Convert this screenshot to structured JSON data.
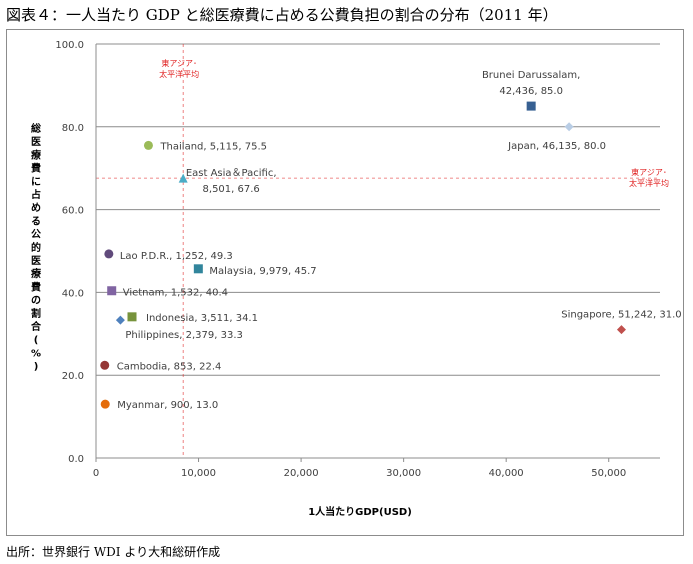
{
  "figure_title": "図表４：一人当たり GDP と総医療費に占める公費負担の割合の分布（2011 年）",
  "source_note": "出所：世界銀行 WDI より大和総研作成",
  "chart_data": {
    "type": "scatter",
    "xlabel": "1人当たりGDP(USD)",
    "ylabel": "総医療費に占める公的医療費の割合(%)",
    "xlim": [
      0,
      55000
    ],
    "ylim": [
      0,
      100
    ],
    "x_ticks": [
      "0",
      "10,000",
      "20,000",
      "30,000",
      "40,000",
      "50,000"
    ],
    "y_ticks": [
      "0.0",
      "20.0",
      "40.0",
      "60.0",
      "80.0",
      "100.0"
    ],
    "grid": "horizontal",
    "points": [
      {
        "label": "Thailand, 5,115, 75.5",
        "x": 5115,
        "y": 75.5,
        "marker": "circle",
        "color": "#9bbb59"
      },
      {
        "label": "Brunei Darussalam,",
        "label2": "42,436, 85.0",
        "x": 42436,
        "y": 85.0,
        "marker": "square",
        "color": "#376092"
      },
      {
        "label": "Japan, 46,135, 80.0",
        "x": 46135,
        "y": 80.0,
        "marker": "diamond",
        "color": "#b9cde5"
      },
      {
        "label": "East Asia＆Pacific,",
        "label2": "8,501, 67.6",
        "x": 8501,
        "y": 67.6,
        "marker": "triangle",
        "color": "#4bacc6"
      },
      {
        "label": "Lao P.D.R., 1,252, 49.3",
        "x": 1252,
        "y": 49.3,
        "marker": "circle",
        "color": "#604a7b"
      },
      {
        "label": "Malaysia, 9,979, 45.7",
        "x": 9979,
        "y": 45.7,
        "marker": "square",
        "color": "#31859c"
      },
      {
        "label": "Vietnam, 1,532, 40.4",
        "x": 1532,
        "y": 40.4,
        "marker": "square",
        "color": "#8064a2"
      },
      {
        "label": "Indonesia, 3,511, 34.1",
        "x": 3511,
        "y": 34.1,
        "marker": "square",
        "color": "#77933c"
      },
      {
        "label": "Philippines, 2,379, 33.3",
        "x": 2379,
        "y": 33.3,
        "marker": "diamond",
        "color": "#4f81bd"
      },
      {
        "label": "Singapore, 51,242, 31.0",
        "x": 51242,
        "y": 31.0,
        "marker": "diamond",
        "color": "#c0504d"
      },
      {
        "label": "Cambodia, 853, 22.4",
        "x": 853,
        "y": 22.4,
        "marker": "circle",
        "color": "#953735"
      },
      {
        "label": "Myanmar, 900, 13.0",
        "x": 900,
        "y": 13.0,
        "marker": "circle",
        "color": "#e46c0a"
      }
    ],
    "reference_lines": [
      {
        "axis": "x",
        "value": 8501,
        "label_lines": [
          "東アジア･",
          "太平洋平均"
        ],
        "color": "#e02020"
      },
      {
        "axis": "y",
        "value": 67.6,
        "label_lines": [
          "東アジア･",
          "太平洋平均"
        ],
        "color": "#e02020"
      }
    ]
  }
}
